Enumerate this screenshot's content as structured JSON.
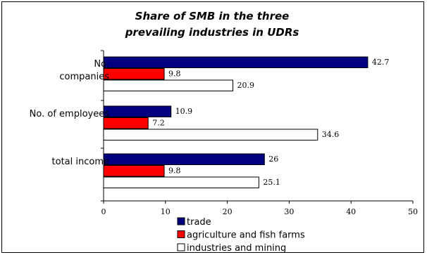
{
  "chart_data": {
    "type": "bar",
    "orientation": "horizontal",
    "title_lines": [
      "Share of SMB in the three",
      "prevailing industries in UDRs"
    ],
    "categories": [
      [
        "No.",
        "companies"
      ],
      [
        "No. of employees"
      ],
      [
        "total income"
      ]
    ],
    "series": [
      {
        "name": "trade",
        "color": "#000080",
        "values": [
          42.7,
          10.9,
          26
        ]
      },
      {
        "name": "agriculture and fish farms",
        "color": "#ff0000",
        "values": [
          9.8,
          7.2,
          9.8
        ]
      },
      {
        "name": "industries and mining",
        "color": "#ffffff",
        "values": [
          20.9,
          34.6,
          25.1
        ]
      }
    ],
    "data_labels": [
      [
        "42.7",
        "9.8",
        "20.9"
      ],
      [
        "10.9",
        "7.2",
        "34.6"
      ],
      [
        "26",
        "9.8",
        "25.1"
      ]
    ],
    "xlim": [
      0,
      50
    ],
    "xticks": [
      0,
      10,
      20,
      30,
      40,
      50
    ],
    "grid": false,
    "legend_position": "bottom"
  }
}
